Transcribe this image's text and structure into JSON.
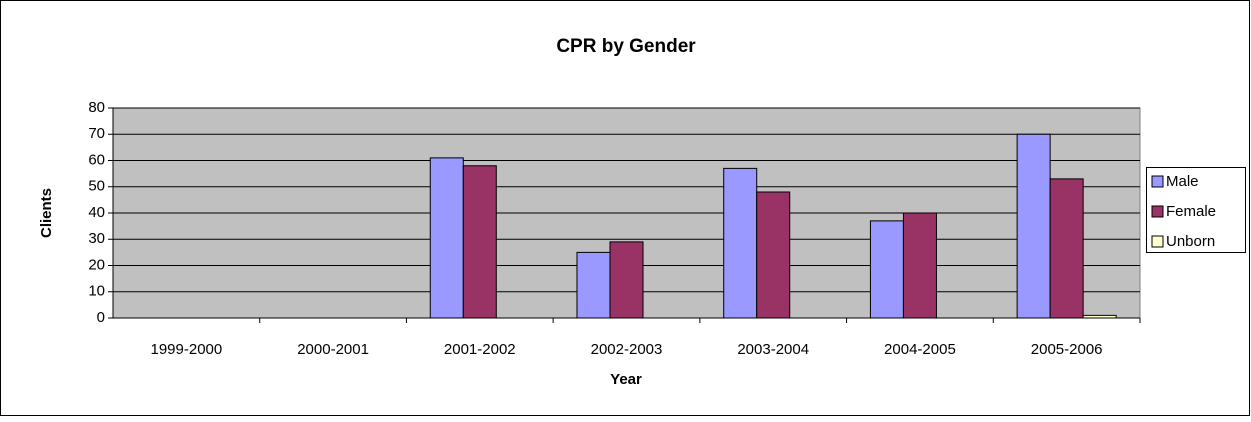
{
  "chart_data": {
    "type": "bar",
    "title": "CPR by Gender",
    "x_label": "Year",
    "y_label": "Clients",
    "categories": [
      "1999-2000",
      "2000-2001",
      "2001-2002",
      "2002-2003",
      "2003-2004",
      "2004-2005",
      "2005-2006"
    ],
    "series": [
      {
        "name": "Male",
        "color": "#9999ff",
        "values": [
          0,
          0,
          61,
          25,
          57,
          37,
          70
        ]
      },
      {
        "name": "Female",
        "color": "#993366",
        "values": [
          0,
          0,
          58,
          29,
          48,
          40,
          53
        ]
      },
      {
        "name": "Unborn",
        "color": "#ffffcc",
        "values": [
          0,
          0,
          0,
          0,
          0,
          0,
          1
        ]
      }
    ],
    "ylim": [
      0,
      80
    ],
    "yticks": [
      0,
      10,
      20,
      30,
      40,
      50,
      60,
      70,
      80
    ],
    "grid": true,
    "legend": "right"
  }
}
